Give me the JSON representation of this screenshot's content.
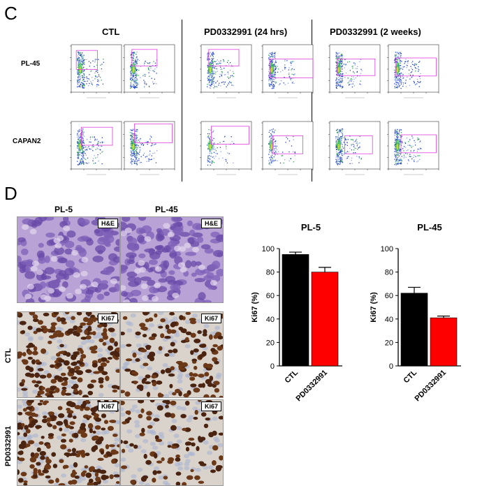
{
  "panel_c": {
    "letter": "C",
    "groups": [
      "CTL",
      "PD0332991 (24 hrs)",
      "PD0332991 (2 weeks)"
    ],
    "rows": [
      "PL-45",
      "CAPAN2"
    ]
  },
  "panel_d": {
    "letter": "D",
    "columns": [
      "PL-5",
      "PL-45"
    ],
    "row_labels": [
      "CTL",
      "PD0332991"
    ],
    "stains": [
      "H&E",
      "H&E",
      "Ki67",
      "Ki67",
      "Ki67",
      "Ki67"
    ]
  },
  "colors": {
    "ctl_bar": "#000000",
    "pd_bar": "#ff0000",
    "gate": "#e040e0"
  },
  "chart_data": [
    {
      "type": "bar",
      "title": "PL-5",
      "categories": [
        "CTL",
        "PD0332991"
      ],
      "values": [
        95,
        80
      ],
      "errors": [
        2,
        4
      ],
      "ylabel": "Ki67 (%)",
      "ylim": [
        0,
        100
      ],
      "yticks": [
        0,
        20,
        40,
        60,
        80,
        100
      ]
    },
    {
      "type": "bar",
      "title": "PL-45",
      "categories": [
        "CTL",
        "PD0332991"
      ],
      "values": [
        62,
        41
      ],
      "errors": [
        5,
        1.5
      ],
      "ylabel": "Ki67 (%)",
      "ylim": [
        0,
        100
      ],
      "yticks": [
        0,
        20,
        40,
        60,
        80,
        100
      ]
    }
  ]
}
